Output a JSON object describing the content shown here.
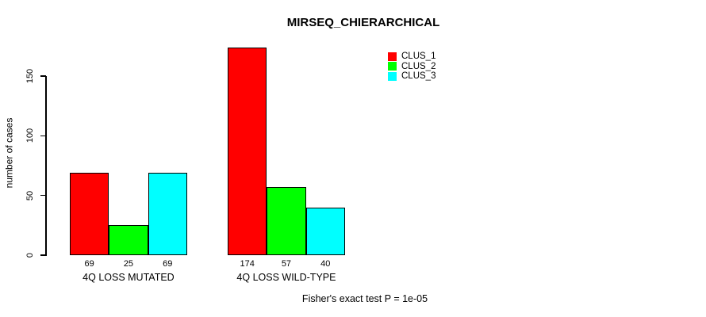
{
  "chart_data": {
    "type": "bar",
    "title": "MIRSEQ_CHIERARCHICAL",
    "ylabel": "number of cases",
    "xlabel": "",
    "categories": [
      "4Q LOSS MUTATED",
      "4Q LOSS WILD-TYPE"
    ],
    "series": [
      {
        "name": "CLUS_1",
        "color": "#ff0000",
        "values": [
          69,
          174
        ]
      },
      {
        "name": "CLUS_2",
        "color": "#00ff00",
        "values": [
          25,
          57
        ]
      },
      {
        "name": "CLUS_3",
        "color": "#00ffff",
        "values": [
          69,
          40
        ]
      }
    ],
    "bar_value_labels": [
      [
        69,
        25,
        69
      ],
      [
        174,
        57,
        40
      ]
    ],
    "yticks": [
      0,
      50,
      100,
      150
    ],
    "ylim": [
      0,
      174
    ],
    "grid": false,
    "legend_position": "top-right",
    "annotation": "Fisher's exact test P = 1e-05",
    "bar_border_color": "#000000",
    "axis_color": "#000000",
    "background_color": "#ffffff"
  }
}
